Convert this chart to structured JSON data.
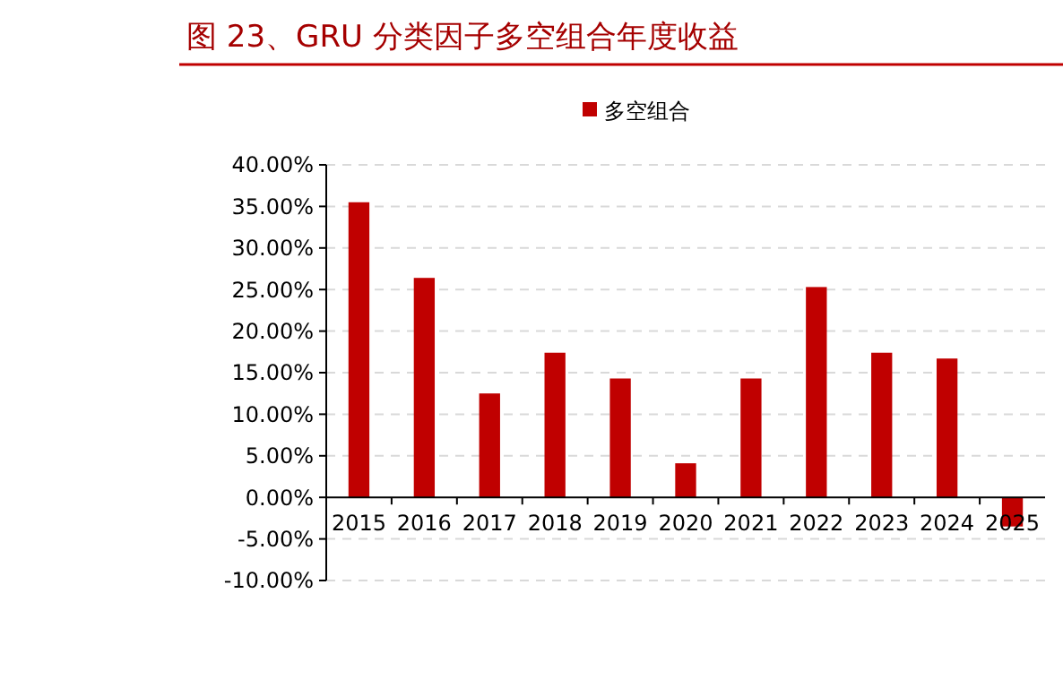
{
  "chart_data": {
    "type": "bar",
    "title": "图 23、GRU 分类因子多空组合年度收益",
    "categories": [
      "2015",
      "2016",
      "2017",
      "2018",
      "2019",
      "2020",
      "2021",
      "2022",
      "2023",
      "2024",
      "2025"
    ],
    "series": [
      {
        "name": "多空组合",
        "color": "#c00000",
        "values": [
          35.5,
          26.4,
          12.5,
          17.4,
          14.3,
          4.1,
          14.3,
          25.3,
          17.4,
          16.7,
          -3.5
        ]
      }
    ],
    "ylim": [
      -10,
      40
    ],
    "yticks": [
      {
        "value": -10,
        "label": "-10.00%"
      },
      {
        "value": -5,
        "label": "-5.00%"
      },
      {
        "value": 0,
        "label": "0.00%"
      },
      {
        "value": 5,
        "label": "5.00%"
      },
      {
        "value": 10,
        "label": "10.00%"
      },
      {
        "value": 15,
        "label": "15.00%"
      },
      {
        "value": 20,
        "label": "20.00%"
      },
      {
        "value": 25,
        "label": "25.00%"
      },
      {
        "value": 30,
        "label": "30.00%"
      },
      {
        "value": 35,
        "label": "35.00%"
      },
      {
        "value": 40,
        "label": "40.00%"
      }
    ],
    "grid": "y",
    "legend": "top"
  }
}
